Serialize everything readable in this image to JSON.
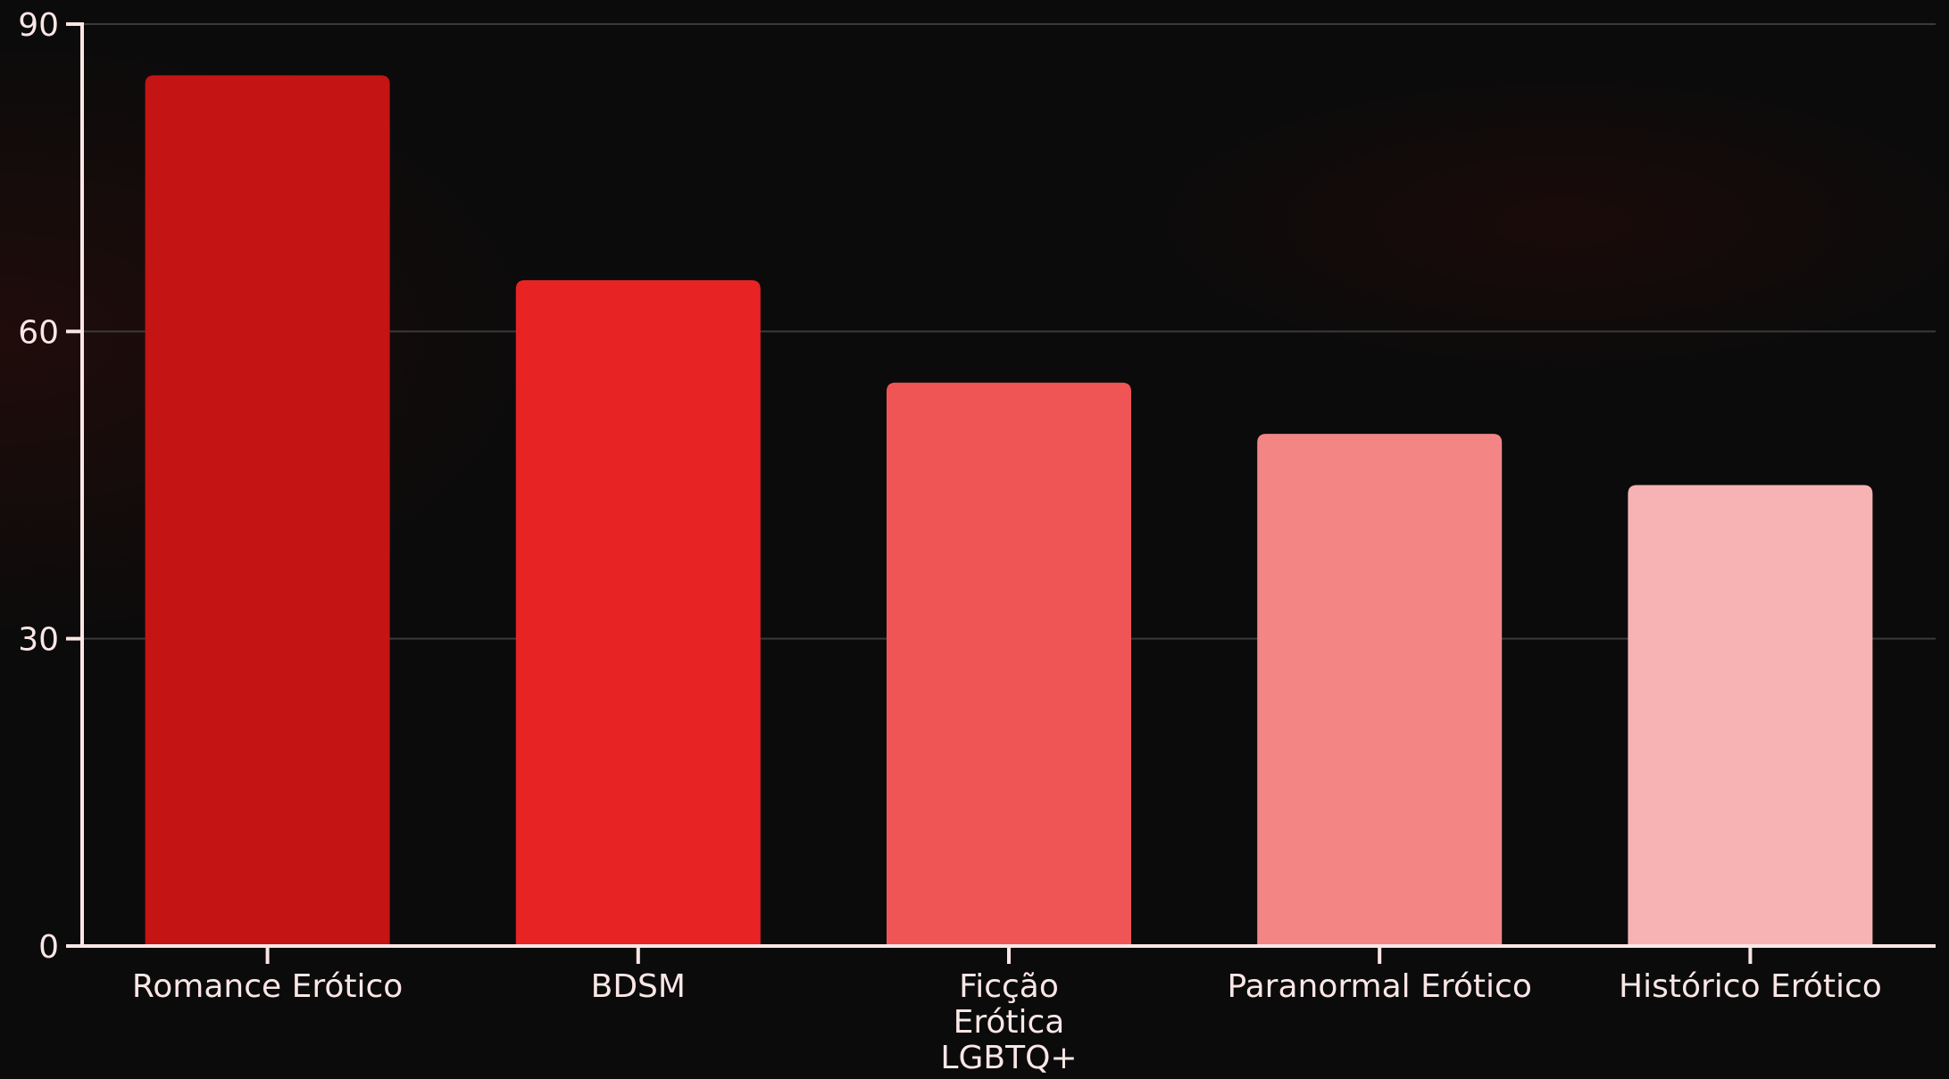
{
  "chart_data": {
    "type": "bar",
    "title": "",
    "xlabel": "",
    "ylabel": "",
    "ylim": [
      0,
      90
    ],
    "yticks": [
      0,
      30,
      60,
      90
    ],
    "grid": true,
    "categories": [
      [
        "Romance Erótico"
      ],
      [
        "BDSM"
      ],
      [
        "Ficção",
        "Erótica",
        "LGBTQ+"
      ],
      [
        "Paranormal Erótico"
      ],
      [
        "Histórico Erótico"
      ]
    ],
    "values": [
      85,
      65,
      55,
      50,
      45
    ],
    "colors": [
      "#c41414",
      "#e82323",
      "#ef5555",
      "#f48585",
      "#f7b3b3"
    ],
    "axis_color": "#fbe6e6",
    "grid_color": "#3a3a3a",
    "text_color": "#fbe6e6"
  }
}
